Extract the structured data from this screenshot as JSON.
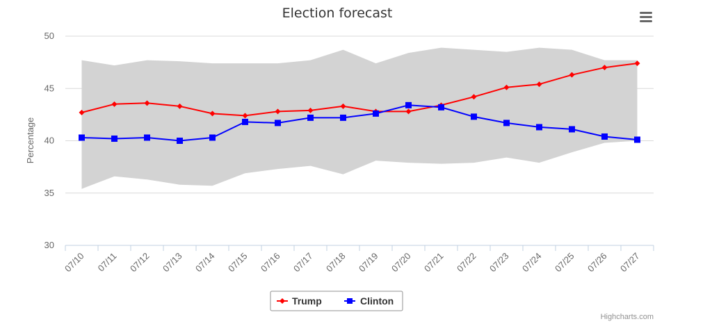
{
  "menu_icon": "hamburger-menu-icon",
  "credit": "Highcharts.com",
  "chart_data": {
    "type": "line",
    "title": "Election forecast",
    "ylabel": "Percentage",
    "xlabel": "",
    "ylim": [
      30,
      50
    ],
    "yticks": [
      30,
      35,
      40,
      45,
      50
    ],
    "grid": true,
    "legend_position": "bottom",
    "categories": [
      "07/10",
      "07/11",
      "07/12",
      "07/13",
      "07/14",
      "07/15",
      "07/16",
      "07/17",
      "07/18",
      "07/19",
      "07/20",
      "07/21",
      "07/22",
      "07/23",
      "07/24",
      "07/25",
      "07/26",
      "07/27"
    ],
    "range": {
      "color": "#d3d3d3",
      "low": [
        35.4,
        36.6,
        36.3,
        35.8,
        35.7,
        36.9,
        37.3,
        37.6,
        36.8,
        38.1,
        37.9,
        37.8,
        37.9,
        38.4,
        37.9,
        38.9,
        39.8,
        40.0
      ],
      "high": [
        47.7,
        47.2,
        47.7,
        47.6,
        47.4,
        47.4,
        47.4,
        47.7,
        48.7,
        47.4,
        48.4,
        48.9,
        48.7,
        48.5,
        48.9,
        48.7,
        47.7,
        47.7
      ]
    },
    "series": [
      {
        "name": "Trump",
        "color": "#ff0000",
        "marker": "diamond",
        "values": [
          42.7,
          43.5,
          43.6,
          43.3,
          42.6,
          42.4,
          42.8,
          42.9,
          43.3,
          42.8,
          42.8,
          43.4,
          44.2,
          45.1,
          45.4,
          46.3,
          47.0,
          47.4
        ]
      },
      {
        "name": "Clinton",
        "color": "#0000ff",
        "marker": "square",
        "values": [
          40.3,
          40.2,
          40.3,
          40.0,
          40.3,
          41.8,
          41.7,
          42.2,
          42.2,
          42.6,
          43.4,
          43.2,
          42.3,
          41.7,
          41.3,
          41.1,
          40.4,
          40.1
        ]
      }
    ]
  }
}
